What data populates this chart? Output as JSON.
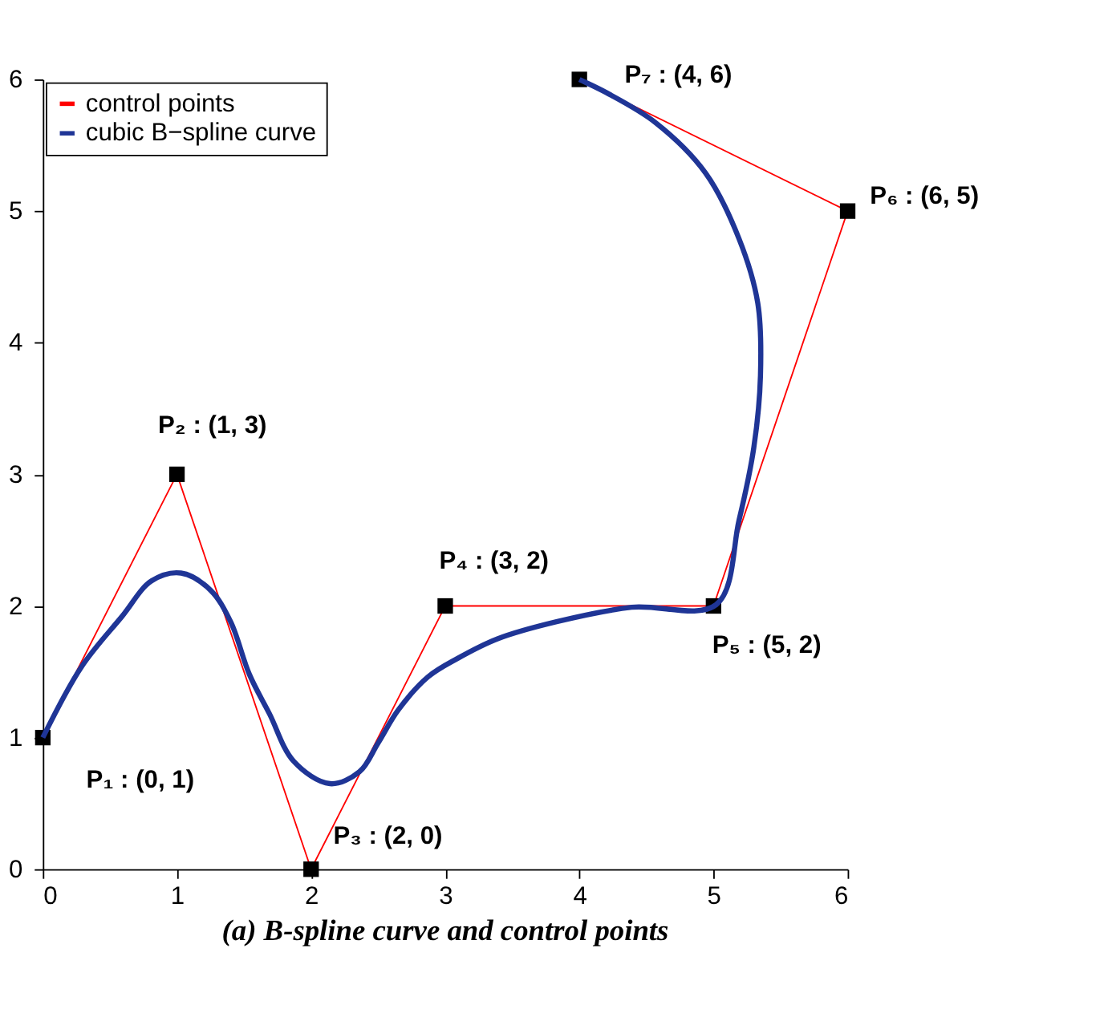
{
  "chart_data": {
    "type": "line",
    "title": "(a) B-spline curve and control points",
    "xlim": [
      0,
      6
    ],
    "ylim": [
      0,
      6
    ],
    "xticks": [
      0,
      1,
      2,
      3,
      4,
      5,
      6
    ],
    "yticks": [
      0,
      1,
      2,
      3,
      4,
      5,
      6
    ],
    "grid": false,
    "legend": "top left",
    "series": [
      {
        "name": "control points",
        "color": "#ff0000",
        "marker": "square",
        "x": [
          0,
          1,
          2,
          3,
          5,
          6,
          4
        ],
        "values": [
          1,
          3,
          0,
          2,
          2,
          5,
          6
        ]
      },
      {
        "name": "cubic B−spline curve",
        "color": "#1f3596",
        "marker": "none",
        "x": [
          0,
          0.29,
          0.59,
          0.81,
          1.03,
          1.25,
          1.4,
          1.54,
          1.69,
          1.87,
          2.14,
          2.36,
          2.5,
          2.65,
          2.87,
          3.09,
          3.39,
          3.83,
          4.39,
          5.02,
          5.19,
          5.3,
          5.35,
          5.33,
          5.19,
          4.94,
          4.57,
          4.2,
          4.02,
          4
        ],
        "values": [
          1,
          1.54,
          1.92,
          2.19,
          2.25,
          2.12,
          1.88,
          1.48,
          1.18,
          0.82,
          0.65,
          0.74,
          0.96,
          1.21,
          1.46,
          1.6,
          1.75,
          1.88,
          1.99,
          2.01,
          2.65,
          3.2,
          3.75,
          4.3,
          4.79,
          5.29,
          5.67,
          5.9,
          5.99,
          6
        ]
      }
    ],
    "annotations": [
      {
        "text": "P₁ : (0, 1)",
        "x": 0,
        "y": 1
      },
      {
        "text": "P₂ : (1, 3)",
        "x": 1,
        "y": 3
      },
      {
        "text": "P₃ : (2, 0)",
        "x": 2,
        "y": 0
      },
      {
        "text": "P₄ : (3, 2)",
        "x": 3,
        "y": 2
      },
      {
        "text": "P₅ : (5, 2)",
        "x": 5,
        "y": 2
      },
      {
        "text": "P₆ : (6, 5)",
        "x": 6,
        "y": 5
      },
      {
        "text": "P₇ : (4, 6)",
        "x": 4,
        "y": 6
      }
    ]
  }
}
